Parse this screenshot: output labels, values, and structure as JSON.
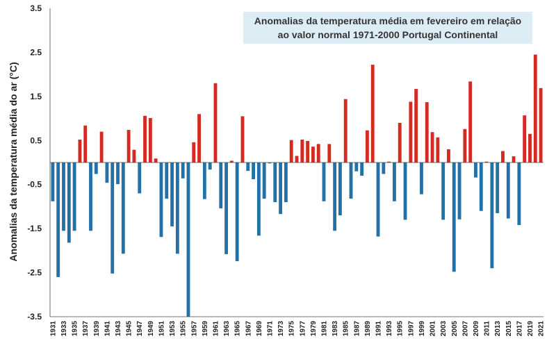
{
  "chart_data": {
    "type": "bar",
    "title": "Anomalias da temperatura média em fevereiro em relação ao valor normal 1971-2000 Portugal Continental",
    "title_lines": [
      "Anomalias da temperatura média em fevereiro em relação",
      "ao valor normal 1971-2000 Portugal Continental"
    ],
    "xlabel": "",
    "ylabel": "Anomalias da temperatura média do ar (°C)",
    "ylim": [
      -3.5,
      3.5
    ],
    "yticks": [
      3.5,
      2.5,
      1.5,
      0.5,
      -0.5,
      -1.5,
      -2.5,
      -3.5
    ],
    "ytick_labels": [
      "3.5",
      "2.5",
      "1.5",
      "0.5",
      "-0.5",
      "-1.5",
      "-2.5",
      "-3.5"
    ],
    "grid": false,
    "legend": "none",
    "colors": {
      "positive": "#d42a22",
      "negative": "#2471a8"
    },
    "categories": [
      "1931",
      "1932",
      "1933",
      "1934",
      "1935",
      "1936",
      "1937",
      "1938",
      "1939",
      "1940",
      "1941",
      "1942",
      "1943",
      "1944",
      "1945",
      "1946",
      "1947",
      "1948",
      "1949",
      "1950",
      "1951",
      "1952",
      "1953",
      "1954",
      "1955",
      "1956",
      "1957",
      "1958",
      "1959",
      "1960",
      "1961",
      "1962",
      "1963",
      "1964",
      "1965",
      "1966",
      "1967",
      "1968",
      "1969",
      "1970",
      "1971",
      "1972",
      "1973",
      "1974",
      "1975",
      "1976",
      "1977",
      "1978",
      "1979",
      "1980",
      "1981",
      "1982",
      "1983",
      "1984",
      "1985",
      "1986",
      "1987",
      "1988",
      "1989",
      "1990",
      "1991",
      "1992",
      "1993",
      "1994",
      "1995",
      "1996",
      "1997",
      "1998",
      "1999",
      "2000",
      "2001",
      "2002",
      "2003",
      "2004",
      "2005",
      "2006",
      "2007",
      "2008",
      "2009",
      "2010",
      "2011",
      "2012",
      "2013",
      "2014",
      "2015",
      "2016",
      "2017",
      "2018",
      "2019",
      "2020",
      "2021"
    ],
    "xtick_labels": [
      "1931",
      "1933",
      "1935",
      "1937",
      "1939",
      "1941",
      "1943",
      "1945",
      "1947",
      "1949",
      "1951",
      "1953",
      "1955",
      "1957",
      "1959",
      "1961",
      "1963",
      "1965",
      "1967",
      "1969",
      "1971",
      "1973",
      "1975",
      "1977",
      "1979",
      "1981",
      "1983",
      "1985",
      "1987",
      "1989",
      "1991",
      "1993",
      "1995",
      "1997",
      "1999",
      "2001",
      "2003",
      "2005",
      "2007",
      "2009",
      "2011",
      "2013",
      "2015",
      "2017",
      "2019",
      "2021"
    ],
    "values": [
      -0.88,
      -2.6,
      -1.55,
      -1.82,
      -1.55,
      0.52,
      0.84,
      -1.55,
      -0.26,
      0.7,
      -0.46,
      -2.52,
      -0.49,
      -2.07,
      0.74,
      0.29,
      -0.7,
      1.06,
      1.01,
      0.09,
      -1.69,
      -0.82,
      -1.45,
      -2.07,
      -0.36,
      -3.5,
      0.46,
      1.1,
      -0.83,
      -0.16,
      1.8,
      -1.04,
      -2.08,
      0.04,
      -2.24,
      1.05,
      -0.19,
      -0.38,
      -1.66,
      -0.82,
      -0.02,
      -0.9,
      -1.17,
      -0.9,
      0.51,
      0.15,
      0.52,
      0.49,
      0.36,
      0.42,
      -0.88,
      0.42,
      -1.55,
      -1.2,
      1.44,
      -0.82,
      -0.2,
      -0.3,
      0.73,
      2.22,
      -1.68,
      -0.26,
      0.02,
      -0.88,
      0.9,
      -1.3,
      1.38,
      1.67,
      -0.72,
      1.37,
      0.69,
      0.57,
      -1.3,
      0.3,
      -2.48,
      -1.29,
      0.76,
      1.84,
      -0.34,
      -1.1,
      0.02,
      -2.4,
      -1.15,
      0.26,
      -1.27,
      0.14,
      -1.42,
      1.07,
      0.65,
      2.45,
      1.69
    ]
  }
}
